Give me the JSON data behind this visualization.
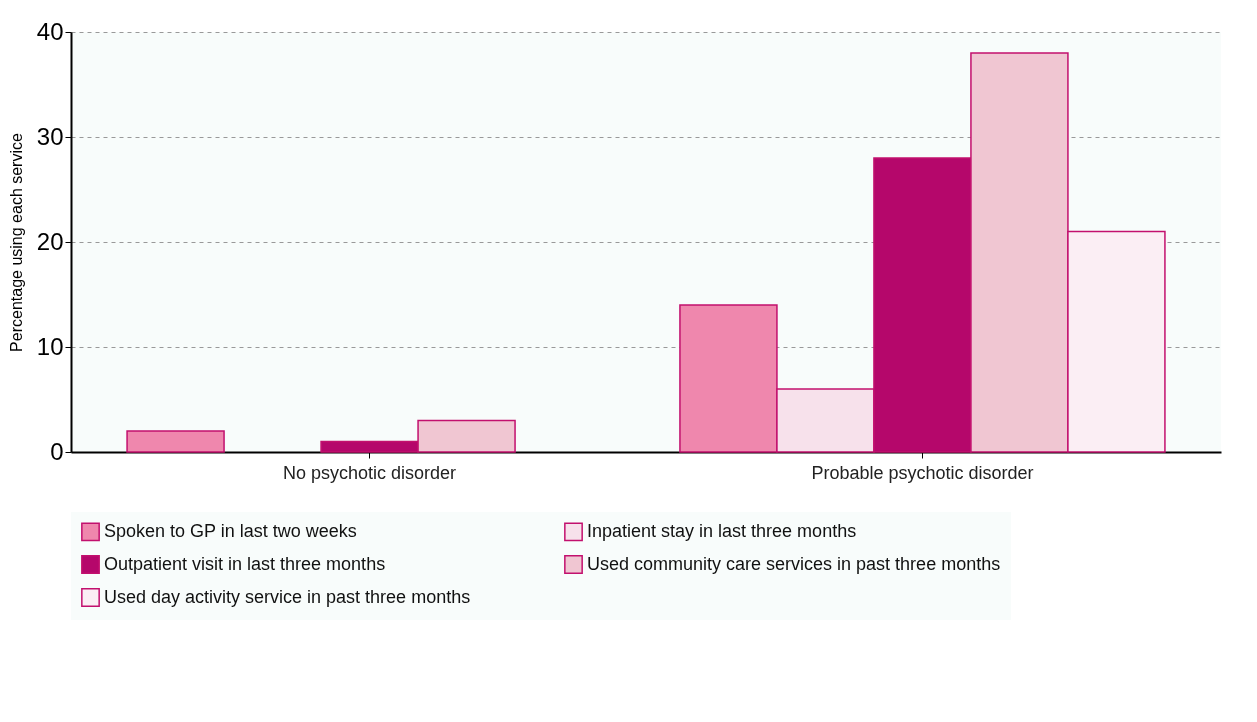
{
  "chart_data": {
    "type": "bar",
    "ylabel": "Percentage using each service",
    "categories": [
      "No psychotic disorder",
      "Probable psychotic disorder"
    ],
    "series": [
      {
        "name": "Spoken to GP in last two weeks",
        "color": "#ef87ad",
        "values": [
          2,
          14
        ]
      },
      {
        "name": "Inpatient stay in last three months",
        "color": "#f7e1eb",
        "values": [
          0,
          6
        ]
      },
      {
        "name": "Outpatient visit in last three months",
        "color": "#b5076b",
        "values": [
          1,
          28
        ]
      },
      {
        "name": "Used community care services in past three months",
        "color": "#f0c6d2",
        "values": [
          3,
          38
        ]
      },
      {
        "name": "Used day activity service in past three months",
        "color": "#fbeef4",
        "values": [
          0,
          21
        ]
      }
    ],
    "ylim": [
      0,
      40
    ],
    "yticks": [
      0,
      10,
      20,
      30,
      40
    ],
    "grid": "y",
    "legend": "bottom"
  }
}
